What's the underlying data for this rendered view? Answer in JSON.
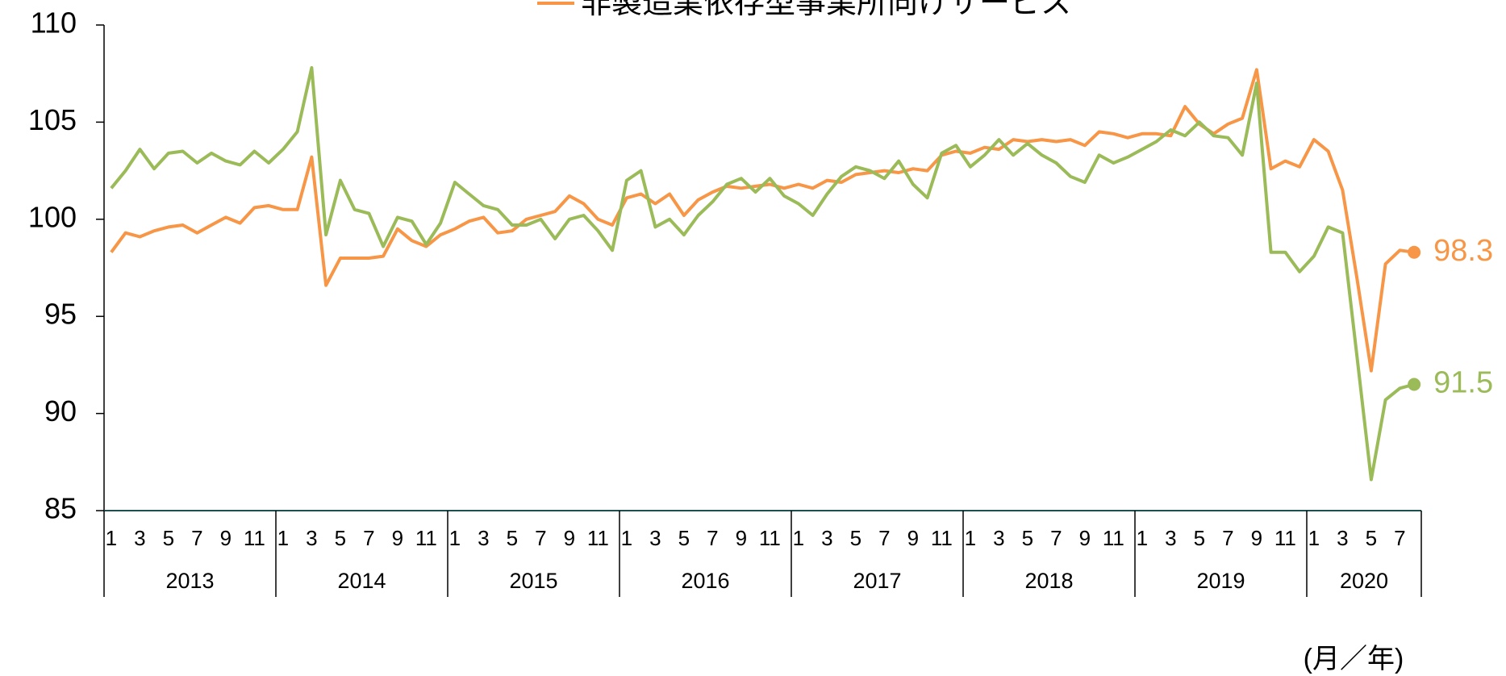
{
  "chart_data": {
    "type": "line",
    "x_label": "(月／年)",
    "categories": [
      "1",
      null,
      "3",
      null,
      "5",
      null,
      "7",
      null,
      "9",
      null,
      "11",
      null,
      "1",
      null,
      "3",
      null,
      "5",
      null,
      "7",
      null,
      "9",
      null,
      "11",
      null,
      "1",
      null,
      "3",
      null,
      "5",
      null,
      "7",
      null,
      "9",
      null,
      "11",
      null,
      "1",
      null,
      "3",
      null,
      "5",
      null,
      "7",
      null,
      "9",
      null,
      "11",
      null,
      "1",
      null,
      "3",
      null,
      "5",
      null,
      "7",
      null,
      "9",
      null,
      "11",
      null,
      "1",
      null,
      "3",
      null,
      "5",
      null,
      "7",
      null,
      "9",
      null,
      "11",
      null,
      "1",
      null,
      "3",
      null,
      "5",
      null,
      "7",
      null,
      "9",
      null,
      "11",
      null,
      "1",
      null,
      "3",
      null,
      "5",
      null,
      "7",
      null
    ],
    "years": [
      "2013",
      "2014",
      "2015",
      "2016",
      "2017",
      "2018",
      "2019",
      "2020"
    ],
    "ylim": [
      85,
      110
    ],
    "yticks": [
      85,
      90,
      95,
      100,
      105,
      110
    ],
    "series": [
      {
        "name": "非製造業依存型事業所向けサービス",
        "color": "#f79646",
        "values": [
          98.3,
          99.3,
          99.1,
          99.4,
          99.6,
          99.7,
          99.3,
          99.7,
          100.1,
          99.8,
          100.6,
          100.7,
          100.5,
          100.5,
          103.2,
          96.6,
          98.0,
          98.0,
          98.0,
          98.1,
          99.5,
          98.9,
          98.6,
          99.2,
          99.5,
          99.9,
          100.1,
          99.3,
          99.4,
          100.0,
          100.2,
          100.4,
          101.2,
          100.8,
          100.0,
          99.7,
          101.1,
          101.3,
          100.8,
          101.3,
          100.2,
          101.0,
          101.4,
          101.7,
          101.6,
          101.7,
          101.8,
          101.6,
          101.8,
          101.6,
          102.0,
          101.9,
          102.3,
          102.4,
          102.5,
          102.4,
          102.6,
          102.5,
          103.3,
          103.5,
          103.4,
          103.7,
          103.6,
          104.1,
          104.0,
          104.1,
          104.0,
          104.1,
          103.8,
          104.5,
          104.4,
          104.2,
          104.4,
          104.4,
          104.3,
          105.8,
          104.9,
          104.4,
          104.9,
          105.2,
          107.7,
          102.6,
          103.0,
          102.7,
          104.1,
          103.5,
          101.5,
          97.0,
          92.2,
          97.7,
          98.4,
          98.3
        ]
      },
      {
        "color": "#9bbb59",
        "values": [
          101.6,
          102.5,
          103.6,
          102.6,
          103.4,
          103.5,
          102.9,
          103.4,
          103.0,
          102.8,
          103.5,
          102.9,
          103.6,
          104.5,
          107.8,
          99.2,
          102.0,
          100.5,
          100.3,
          98.6,
          100.1,
          99.9,
          98.7,
          99.8,
          101.9,
          101.3,
          100.7,
          100.5,
          99.7,
          99.7,
          100.0,
          99.0,
          100.0,
          100.2,
          99.4,
          98.4,
          102.0,
          102.5,
          99.6,
          100.0,
          99.2,
          100.2,
          100.9,
          101.8,
          102.1,
          101.4,
          102.1,
          101.2,
          100.8,
          100.2,
          101.3,
          102.2,
          102.7,
          102.5,
          102.1,
          103.0,
          101.8,
          101.1,
          103.4,
          103.8,
          102.7,
          103.3,
          104.1,
          103.3,
          103.9,
          103.3,
          102.9,
          102.2,
          101.9,
          103.3,
          102.9,
          103.2,
          103.6,
          104.0,
          104.6,
          104.3,
          105.0,
          104.3,
          104.2,
          103.3,
          107.0,
          98.3,
          98.3,
          97.3,
          98.1,
          99.6,
          99.3,
          93.0,
          86.6,
          90.7,
          91.3,
          91.5
        ]
      }
    ]
  }
}
